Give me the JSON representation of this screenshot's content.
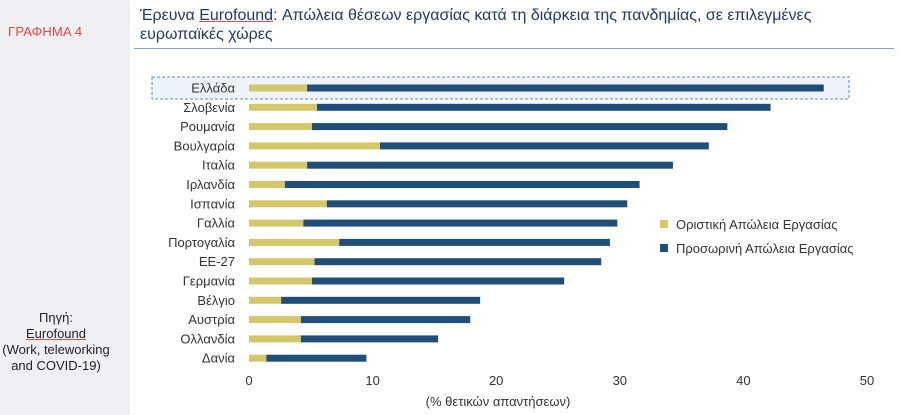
{
  "sidebar": {
    "figure_label": "ΓΡΑΦΗΜΑ 4",
    "source_label": "Πηγή:",
    "source_name": "Eurofound",
    "source_detail": "(Work, teleworking and COVID-19)"
  },
  "header": {
    "title_pre": "Έρευνα ",
    "title_highlight": "Eurofound",
    "title_post": ": Απώλεια θέσεων εργασίας κατά τη διάρκεια της πανδημίας, σε επιλεγμένες ευρωπαϊκές χώρες"
  },
  "colors": {
    "permanent": "#d4c76a",
    "temporary": "#1f4e79",
    "highlight_border": "#5b8fbf",
    "highlight_fill": "#eef3fa"
  },
  "chart_data": {
    "type": "bar",
    "orientation": "horizontal",
    "stacked": true,
    "categories": [
      "Ελλάδα",
      "Σλοβενία",
      "Ρουμανία",
      "Βουλγαρία",
      "Ιταλία",
      "Ιρλανδία",
      "Ισπανία",
      "Γαλλία",
      "Πορτογαλία",
      "ΕΕ-27",
      "Γερμανία",
      "Βέλγιο",
      "Αυστρία",
      "Ολλανδία",
      "Δανία"
    ],
    "series": [
      {
        "name": "Οριστική Απώλεια Εργασίας",
        "values": [
          4.7,
          5.5,
          5.1,
          10.6,
          4.7,
          2.9,
          6.3,
          4.4,
          7.3,
          5.3,
          5.1,
          2.6,
          4.2,
          4.2,
          1.4
        ]
      },
      {
        "name": "Προσωρινή Απώλεια Εργασίας",
        "values": [
          41.8,
          36.7,
          33.6,
          26.6,
          29.6,
          28.7,
          24.3,
          25.4,
          21.9,
          23.2,
          20.4,
          16.1,
          13.7,
          11.1,
          8.1
        ]
      }
    ],
    "highlight_category": "Ελλάδα",
    "xlim": [
      0,
      50
    ],
    "xticks": [
      0,
      10,
      20,
      30,
      40,
      50
    ],
    "xlabel": "(% θετικών απαντήσεων)",
    "grid": false,
    "legend_position": "right"
  }
}
